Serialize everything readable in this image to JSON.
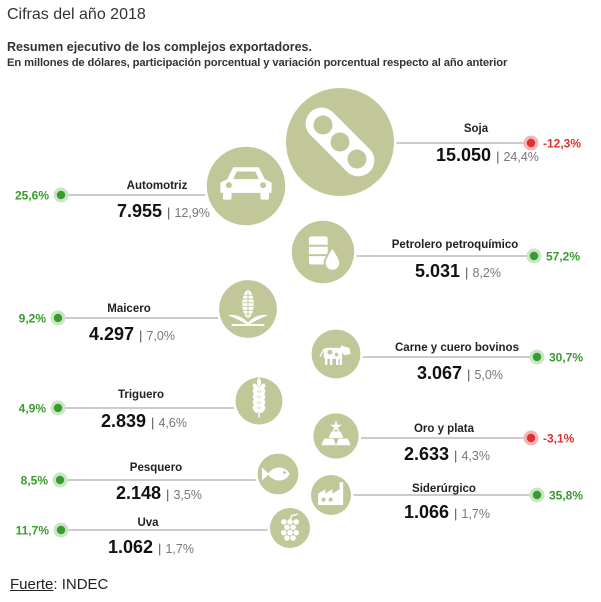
{
  "header": {
    "title": "Cifras del año 2018",
    "subtitle": "Resumen ejecutivo de los complejos exportadores.",
    "subtitle2": "En millones de dólares, participación porcentual y variación porcentual respecto al año anterior"
  },
  "footer": {
    "source_label": "Fuerte",
    "source_value": ": INDEC"
  },
  "colors": {
    "bubble": "#c2c79a",
    "bubble_ring": "#ffffff",
    "icon": "#ffffff",
    "positive": "#3a9b2e",
    "negative": "#e03131",
    "negative_halo": "#f4b5b5",
    "positive_halo": "#c8e6c3",
    "line": "#9a9a9a",
    "value_text": "#111111",
    "pct_text": "#777777"
  },
  "chart_data": {
    "type": "bubble",
    "title": "Cifras del año 2018",
    "units": "millones de dólares",
    "series": [
      {
        "name": "Soja",
        "value": 15050,
        "value_label": "15.050",
        "share": 24.4,
        "share_label": "24,4%",
        "change": -12.3,
        "change_label": "-12,3%",
        "icon": "soybean-icon"
      },
      {
        "name": "Automotriz",
        "value": 7955,
        "value_label": "7.955",
        "share": 12.9,
        "share_label": "12,9%",
        "change": 25.6,
        "change_label": "25,6%",
        "icon": "car-icon"
      },
      {
        "name": "Petrolero petroquímico",
        "value": 5031,
        "value_label": "5.031",
        "share": 8.2,
        "share_label": "8,2%",
        "change": 57.2,
        "change_label": "57,2%",
        "icon": "oil-barrel-icon"
      },
      {
        "name": "Maicero",
        "value": 4297,
        "value_label": "4.297",
        "share": 7.0,
        "share_label": "7,0%",
        "change": 9.2,
        "change_label": "9,2%",
        "icon": "corn-icon"
      },
      {
        "name": "Carne y cuero bovinos",
        "value": 3067,
        "value_label": "3.067",
        "share": 5.0,
        "share_label": "5,0%",
        "change": 30.7,
        "change_label": "30,7%",
        "icon": "cow-icon"
      },
      {
        "name": "Triguero",
        "value": 2839,
        "value_label": "2.839",
        "share": 4.6,
        "share_label": "4,6%",
        "change": 4.9,
        "change_label": "4,9%",
        "icon": "wheat-icon"
      },
      {
        "name": "Oro y plata",
        "value": 2633,
        "value_label": "2.633",
        "share": 4.3,
        "share_label": "4,3%",
        "change": -3.1,
        "change_label": "-3,1%",
        "icon": "gold-bars-icon"
      },
      {
        "name": "Pesquero",
        "value": 2148,
        "value_label": "2.148",
        "share": 3.5,
        "share_label": "3,5%",
        "change": 8.5,
        "change_label": "8,5%",
        "icon": "fish-icon"
      },
      {
        "name": "Siderúrgico",
        "value": 1066,
        "value_label": "1.066",
        "share": 1.7,
        "share_label": "1,7%",
        "change": 35.8,
        "change_label": "35,8%",
        "icon": "factory-icon"
      },
      {
        "name": "Uva",
        "value": 1062,
        "value_label": "1.062",
        "share": 1.7,
        "share_label": "1,7%",
        "change": 11.7,
        "change_label": "11,7%",
        "icon": "grapes-icon"
      }
    ]
  }
}
